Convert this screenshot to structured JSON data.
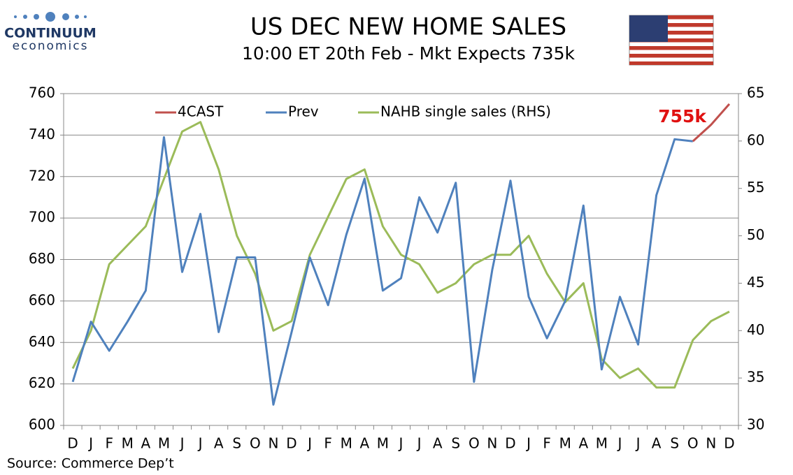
{
  "chart_data": {
    "type": "line",
    "title": "US DEC NEW HOME SALES",
    "subtitle": "10:00 ET 20th Feb - Mkt Expects 735k",
    "logo": {
      "name": "CONTINUUM",
      "tagline": "economics"
    },
    "source": "Source: Commerce Dep’t",
    "annotation": "755k",
    "categories": [
      "D",
      "J",
      "F",
      "M",
      "A",
      "M",
      "J",
      "J",
      "A",
      "S",
      "O",
      "N",
      "D",
      "J",
      "F",
      "M",
      "A",
      "M",
      "J",
      "J",
      "A",
      "S",
      "O",
      "N",
      "D",
      "J",
      "F",
      "M",
      "A",
      "M",
      "J",
      "J",
      "A",
      "S",
      "O",
      "N",
      "D"
    ],
    "series": [
      {
        "name": "4CAST",
        "color": "#c0504d",
        "values": [
          null,
          null,
          null,
          null,
          null,
          null,
          null,
          null,
          null,
          null,
          null,
          null,
          null,
          null,
          null,
          null,
          null,
          null,
          null,
          null,
          null,
          null,
          null,
          null,
          null,
          null,
          null,
          null,
          null,
          null,
          null,
          null,
          null,
          null,
          737,
          745,
          755
        ]
      },
      {
        "name": "Prev",
        "color": "#4f81bd",
        "values": [
          621,
          650,
          636,
          650,
          665,
          739,
          674,
          702,
          645,
          681,
          681,
          610,
          645,
          681,
          658,
          692,
          719,
          665,
          671,
          710,
          693,
          717,
          621,
          675,
          718,
          662,
          642,
          660,
          706,
          627,
          662,
          639,
          711,
          738,
          737,
          null,
          null
        ]
      },
      {
        "name": "NAHB single sales (RHS)",
        "color": "#9bbb59",
        "axis": "y2",
        "values": [
          36,
          40,
          47,
          49,
          51,
          56,
          61,
          62,
          57,
          50,
          46,
          40,
          41,
          48,
          52,
          56,
          57,
          51,
          48,
          47,
          44,
          45,
          47,
          48,
          48,
          50,
          46,
          43,
          45,
          37,
          35,
          36,
          34,
          34,
          39,
          41,
          42
        ]
      }
    ],
    "ylim": [
      600,
      760
    ],
    "yticks": [
      600,
      620,
      640,
      660,
      680,
      700,
      720,
      740,
      760
    ],
    "y2lim": [
      30,
      65
    ],
    "y2ticks": [
      30,
      35,
      40,
      45,
      50,
      55,
      60,
      65
    ],
    "grid": true
  }
}
